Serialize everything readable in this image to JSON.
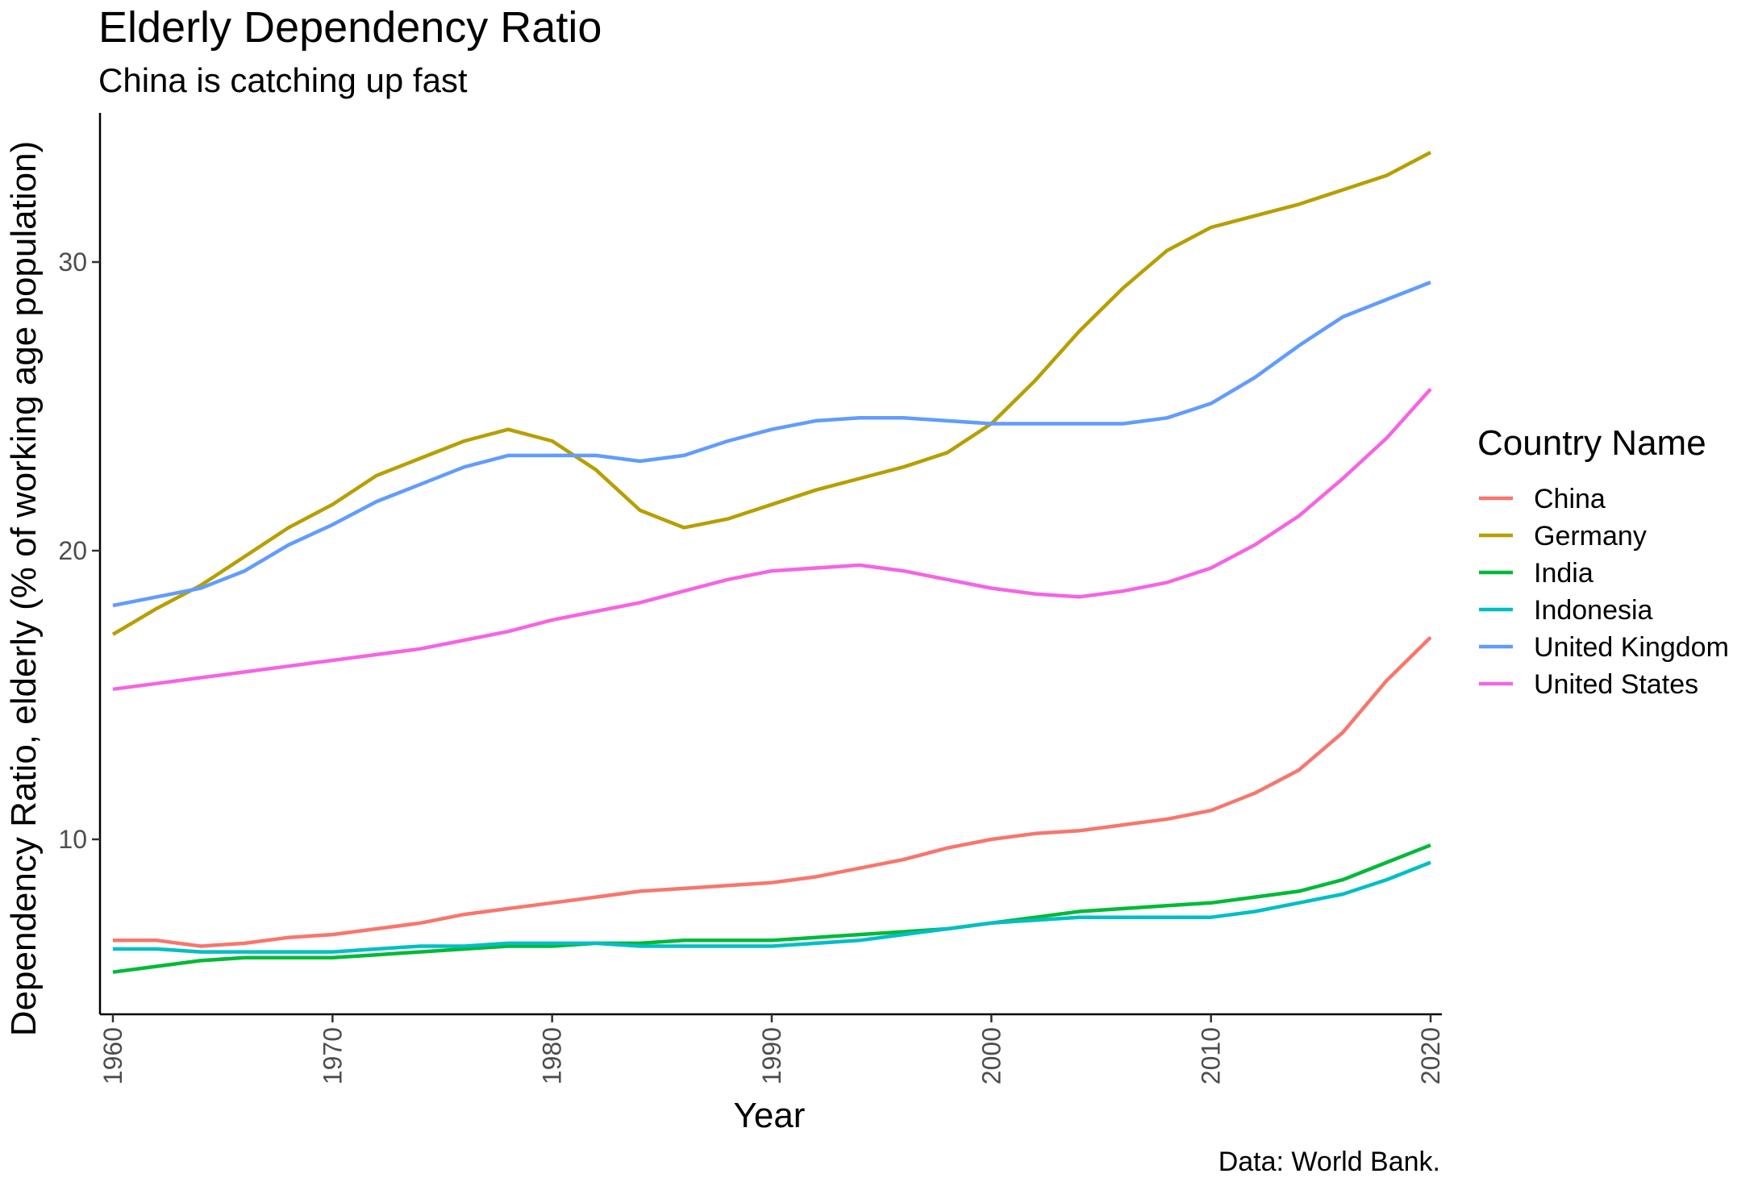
{
  "chart_data": {
    "type": "line",
    "title": "Elderly Dependency Ratio",
    "subtitle": "China is catching up fast",
    "xlabel": "Year",
    "ylabel": "Dependency Ratio, elderly (% of working age population)",
    "caption": "Data: World Bank.",
    "xlim": [
      1960,
      2020
    ],
    "ylim": [
      4,
      35
    ],
    "x_ticks": [
      1960,
      1970,
      1980,
      1990,
      2000,
      2010,
      2020
    ],
    "y_ticks": [
      10,
      20,
      30
    ],
    "grid": false,
    "legend": {
      "title": "Country Name",
      "position": "right"
    },
    "x": [
      1960,
      1962,
      1964,
      1966,
      1968,
      1970,
      1972,
      1974,
      1976,
      1978,
      1980,
      1982,
      1984,
      1986,
      1988,
      1990,
      1992,
      1994,
      1996,
      1998,
      2000,
      2002,
      2004,
      2006,
      2008,
      2010,
      2012,
      2014,
      2016,
      2018,
      2020
    ],
    "series": [
      {
        "name": "China",
        "color": "#F8766D",
        "values": [
          6.5,
          6.5,
          6.3,
          6.4,
          6.6,
          6.7,
          6.9,
          7.1,
          7.4,
          7.6,
          7.8,
          8.0,
          8.2,
          8.3,
          8.4,
          8.5,
          8.7,
          9.0,
          9.3,
          9.7,
          10.0,
          10.2,
          10.3,
          10.5,
          10.7,
          11.0,
          11.6,
          12.4,
          13.7,
          15.5,
          17.0
        ]
      },
      {
        "name": "Germany",
        "color": "#B79F00",
        "values": [
          17.1,
          18.0,
          18.8,
          19.8,
          20.8,
          21.6,
          22.6,
          23.2,
          23.8,
          24.2,
          23.8,
          22.8,
          21.4,
          20.8,
          21.1,
          21.6,
          22.1,
          22.5,
          22.9,
          23.4,
          24.4,
          25.9,
          27.6,
          29.1,
          30.4,
          31.2,
          31.6,
          32.0,
          32.5,
          33.0,
          33.8
        ]
      },
      {
        "name": "India",
        "color": "#00BA38",
        "values": [
          5.4,
          5.6,
          5.8,
          5.9,
          5.9,
          5.9,
          6.0,
          6.1,
          6.2,
          6.3,
          6.3,
          6.4,
          6.4,
          6.5,
          6.5,
          6.5,
          6.6,
          6.7,
          6.8,
          6.9,
          7.1,
          7.3,
          7.5,
          7.6,
          7.7,
          7.8,
          8.0,
          8.2,
          8.6,
          9.2,
          9.8
        ]
      },
      {
        "name": "Indonesia",
        "color": "#00BFC4",
        "values": [
          6.2,
          6.2,
          6.1,
          6.1,
          6.1,
          6.1,
          6.2,
          6.3,
          6.3,
          6.4,
          6.4,
          6.4,
          6.3,
          6.3,
          6.3,
          6.3,
          6.4,
          6.5,
          6.7,
          6.9,
          7.1,
          7.2,
          7.3,
          7.3,
          7.3,
          7.3,
          7.5,
          7.8,
          8.1,
          8.6,
          9.2
        ]
      },
      {
        "name": "United Kingdom",
        "color": "#619CFF",
        "values": [
          18.1,
          18.4,
          18.7,
          19.3,
          20.2,
          20.9,
          21.7,
          22.3,
          22.9,
          23.3,
          23.3,
          23.3,
          23.1,
          23.3,
          23.8,
          24.2,
          24.5,
          24.6,
          24.6,
          24.5,
          24.4,
          24.4,
          24.4,
          24.4,
          24.6,
          25.1,
          26.0,
          27.1,
          28.1,
          28.7,
          29.3
        ]
      },
      {
        "name": "United States",
        "color": "#F564E3",
        "values": [
          15.2,
          15.4,
          15.6,
          15.8,
          16.0,
          16.2,
          16.4,
          16.6,
          16.9,
          17.2,
          17.6,
          17.9,
          18.2,
          18.6,
          19.0,
          19.3,
          19.4,
          19.5,
          19.3,
          19.0,
          18.7,
          18.5,
          18.4,
          18.6,
          18.9,
          19.4,
          20.2,
          21.2,
          22.5,
          23.9,
          25.6
        ]
      }
    ]
  }
}
